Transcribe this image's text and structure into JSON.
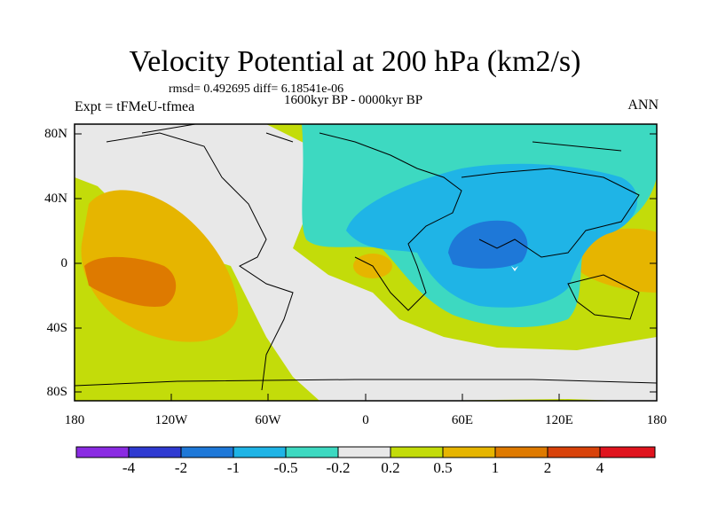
{
  "title": "Velocity Potential at 200 hPa (km2/s)",
  "stats": "rmsd= 0.492695  diff= 6.18541e-06",
  "period": "1600kyr BP - 0000kyr BP",
  "experiment": "Expt = tFMeU-tfmea",
  "season": "ANN",
  "lat_labels": [
    "80N",
    "40N",
    "0",
    "40S",
    "80S"
  ],
  "lon_labels": [
    "180",
    "120W",
    "60W",
    "0",
    "60E",
    "120E",
    "180"
  ],
  "colorbar": {
    "labels": [
      "-4",
      "-2",
      "-1",
      "-0.5",
      "-0.2",
      "0.2",
      "0.5",
      "1",
      "2",
      "4"
    ],
    "colors": [
      "#8a2be2",
      "#2f3ad1",
      "#1e78d8",
      "#1fb4e6",
      "#3dd9c1",
      "#e8e8e8",
      "#c3dc0a",
      "#e6b500",
      "#de7a00",
      "#d8420a",
      "#e0141e"
    ]
  },
  "palette": {
    "land_neutral": "#e8e8e8",
    "pos_weak": "#c3dc0a",
    "pos_mid": "#e6b500",
    "pos_strong": "#de7a00",
    "neg_weak": "#3dd9c1",
    "neg_mid": "#1fb4e6",
    "neg_strong": "#1e78d8"
  }
}
